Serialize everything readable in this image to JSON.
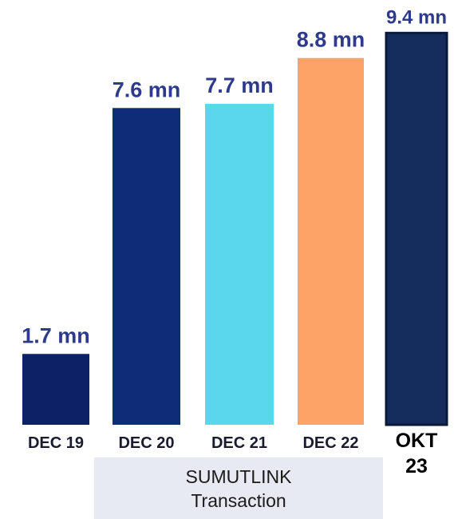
{
  "chart_data": {
    "type": "bar",
    "categories": [
      "DEC 19",
      "DEC 20",
      "DEC 21",
      "DEC 22",
      "OKT 23"
    ],
    "values": [
      1.7,
      7.6,
      7.7,
      8.8,
      9.4
    ],
    "value_labels": [
      "1.7 mn",
      "7.6 mn",
      "7.7 mn",
      "8.8 mn",
      "9.4 mn"
    ],
    "unit": "mn",
    "colors": [
      "#0d2166",
      "#0e2c78",
      "#5ad6ed",
      "#fea367",
      "#142d5c"
    ],
    "last_bar_border": "#0b1a3a",
    "value_label_color": "#2e3a8c",
    "title": "",
    "xlabel": "",
    "ylabel": "",
    "grid": false,
    "legend": "none"
  },
  "caption": {
    "line1": "SUMUTLINK",
    "line2": "Transaction"
  }
}
